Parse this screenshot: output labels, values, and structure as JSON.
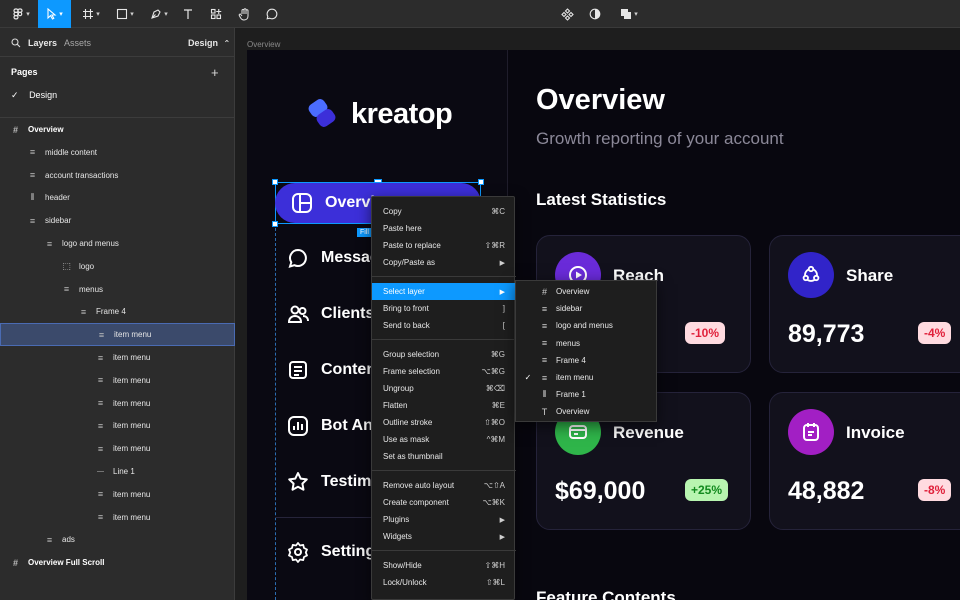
{
  "toolbar": {
    "zoom_caret": "▾"
  },
  "left_panel": {
    "tabs": {
      "layers": "Layers",
      "assets": "Assets",
      "page_selector": "Design",
      "page_caret": "⌃"
    },
    "pages_heading": "Pages",
    "add_page": "+",
    "current_page": "Design",
    "layers": [
      {
        "label": "Overview",
        "icon": "frame-icon",
        "depth": 0,
        "selected": false
      },
      {
        "label": "middle content",
        "icon": "auto-layout-vertical-icon",
        "depth": 1,
        "selected": false
      },
      {
        "label": "account transactions",
        "icon": "auto-layout-vertical-icon",
        "depth": 1,
        "selected": false
      },
      {
        "label": "header",
        "icon": "auto-layout-horizontal-icon",
        "depth": 1,
        "selected": false
      },
      {
        "label": "sidebar",
        "icon": "auto-layout-vertical-icon",
        "depth": 1,
        "selected": false
      },
      {
        "label": "logo and menus",
        "icon": "auto-layout-vertical-icon",
        "depth": 2,
        "selected": false
      },
      {
        "label": "logo",
        "icon": "dashed-frame-icon",
        "depth": 3,
        "selected": false
      },
      {
        "label": "menus",
        "icon": "auto-layout-vertical-icon",
        "depth": 3,
        "selected": false
      },
      {
        "label": "Frame 4",
        "icon": "auto-layout-vertical-icon",
        "depth": 4,
        "selected": false
      },
      {
        "label": "item menu",
        "icon": "auto-layout-vertical-icon",
        "depth": 5,
        "selected": true
      },
      {
        "label": "item menu",
        "icon": "auto-layout-vertical-icon",
        "depth": 5,
        "selected": false
      },
      {
        "label": "item menu",
        "icon": "auto-layout-vertical-icon",
        "depth": 5,
        "selected": false
      },
      {
        "label": "item menu",
        "icon": "auto-layout-vertical-icon",
        "depth": 5,
        "selected": false
      },
      {
        "label": "item menu",
        "icon": "auto-layout-vertical-icon",
        "depth": 5,
        "selected": false
      },
      {
        "label": "item menu",
        "icon": "auto-layout-vertical-icon",
        "depth": 5,
        "selected": false
      },
      {
        "label": "Line 1",
        "icon": "line-icon",
        "depth": 5,
        "selected": false
      },
      {
        "label": "item menu",
        "icon": "auto-layout-vertical-icon",
        "depth": 5,
        "selected": false
      },
      {
        "label": "item menu",
        "icon": "auto-layout-vertical-icon",
        "depth": 5,
        "selected": false
      },
      {
        "label": "ads",
        "icon": "auto-layout-vertical-icon",
        "depth": 2,
        "selected": false
      },
      {
        "label": "Overview Full Scroll",
        "icon": "frame-icon",
        "depth": 0,
        "selected": false
      }
    ]
  },
  "canvas": {
    "frame_label": "Overview",
    "fill_tag": "Fill",
    "brand": "kreatop",
    "nav": [
      {
        "label": "Overview",
        "icon": "dashboard-icon",
        "active": true
      },
      {
        "label": "Messages",
        "icon": "chat-icon",
        "active": false
      },
      {
        "label": "Clients",
        "icon": "users-icon",
        "active": false
      },
      {
        "label": "Content",
        "icon": "document-icon",
        "active": false
      },
      {
        "label": "Bot Analytics",
        "icon": "analytics-icon",
        "active": false
      },
      {
        "label": "Testimonials",
        "icon": "star-icon",
        "active": false
      },
      {
        "label": "Settings",
        "icon": "gear-icon",
        "active": false
      }
    ],
    "title": "Overview",
    "subtitle": "Growth reporting of your account",
    "section": "Latest Statistics",
    "section2": "Feature Contents",
    "cards": [
      {
        "title": "Reach",
        "value": "",
        "badge": "-10%",
        "badge_type": "neg",
        "icon_color": "#6a2bd9",
        "icon": "play-icon"
      },
      {
        "title": "Share",
        "value": "89,773",
        "badge": "-4%",
        "badge_type": "neg",
        "icon_color": "#3124c9",
        "icon": "share-icon"
      },
      {
        "title": "Revenue",
        "value": "$69,000",
        "badge": "+25%",
        "badge_type": "pos",
        "icon_color": "#2fb54a",
        "icon": "card-icon"
      },
      {
        "title": "Invoice",
        "value": "48,882",
        "badge": "-8%",
        "badge_type": "neg",
        "icon_color": "#a21fc4",
        "icon": "invoice-icon"
      }
    ]
  },
  "context_menu": {
    "groups": [
      [
        {
          "label": "Copy",
          "shortcut": "⌘C"
        },
        {
          "label": "Paste here",
          "shortcut": ""
        },
        {
          "label": "Paste to replace",
          "shortcut": "⇧⌘R"
        },
        {
          "label": "Copy/Paste as",
          "shortcut": "",
          "submenu": true
        }
      ],
      [
        {
          "label": "Select layer",
          "shortcut": "",
          "submenu": true,
          "highlighted": true
        },
        {
          "label": "Bring to front",
          "shortcut": "]"
        },
        {
          "label": "Send to back",
          "shortcut": "["
        }
      ],
      [
        {
          "label": "Group selection",
          "shortcut": "⌘G"
        },
        {
          "label": "Frame selection",
          "shortcut": "⌥⌘G"
        },
        {
          "label": "Ungroup",
          "shortcut": "⌘⌫"
        },
        {
          "label": "Flatten",
          "shortcut": "⌘E"
        },
        {
          "label": "Outline stroke",
          "shortcut": "⇧⌘O"
        },
        {
          "label": "Use as mask",
          "shortcut": "^⌘M"
        },
        {
          "label": "Set as thumbnail",
          "shortcut": ""
        }
      ],
      [
        {
          "label": "Remove auto layout",
          "shortcut": "⌥⇧A"
        },
        {
          "label": "Create component",
          "shortcut": "⌥⌘K"
        },
        {
          "label": "Plugins",
          "shortcut": "",
          "submenu": true
        },
        {
          "label": "Widgets",
          "shortcut": "",
          "submenu": true
        }
      ],
      [
        {
          "label": "Show/Hide",
          "shortcut": "⇧⌘H"
        },
        {
          "label": "Lock/Unlock",
          "shortcut": "⇧⌘L"
        }
      ]
    ],
    "submenu": [
      {
        "label": "Overview",
        "icon": "frame-icon",
        "checked": false
      },
      {
        "label": "sidebar",
        "icon": "auto-layout-vertical-icon",
        "checked": false
      },
      {
        "label": "logo and menus",
        "icon": "auto-layout-vertical-icon",
        "checked": false
      },
      {
        "label": "menus",
        "icon": "auto-layout-vertical-icon",
        "checked": false
      },
      {
        "label": "Frame 4",
        "icon": "auto-layout-vertical-icon",
        "checked": false
      },
      {
        "label": "item menu",
        "icon": "auto-layout-vertical-icon",
        "checked": true
      },
      {
        "label": "Frame 1",
        "icon": "auto-layout-horizontal-icon",
        "checked": false
      },
      {
        "label": "Overview",
        "icon": "text-icon",
        "checked": false
      }
    ]
  },
  "colors": {
    "accent": "#0d99ff",
    "brand_active": "#3c2fd9",
    "panel_bg": "#2c2c2c",
    "frame_bg": "#08070f"
  }
}
